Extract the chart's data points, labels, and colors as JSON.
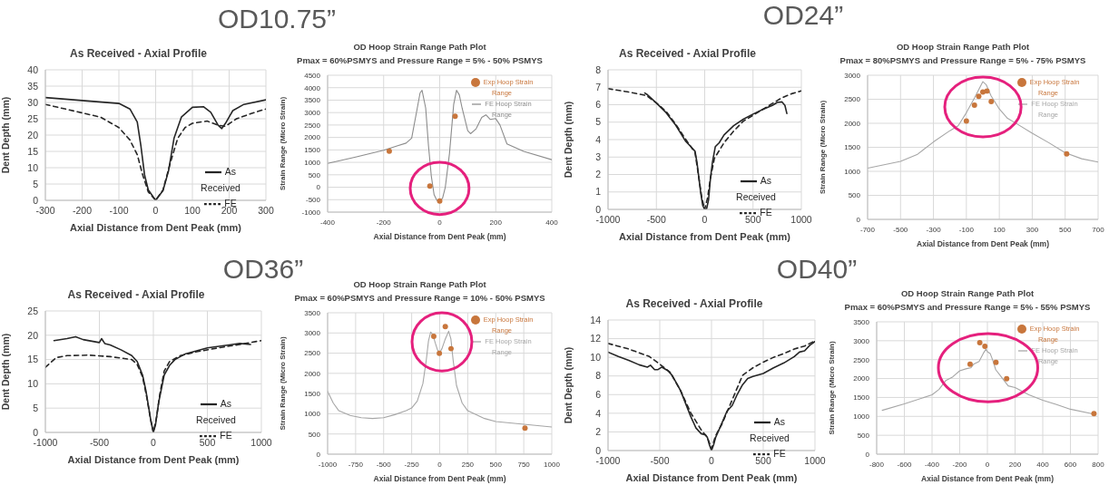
{
  "chart_data": [
    {
      "type": "other",
      "title": "OD10.75”"
    },
    {
      "type": "line",
      "title": "As Received - Axial Profile",
      "xlabel": "Axial Distance from Dent Peak (mm)",
      "ylabel": "Dent Depth (mm)",
      "xlim": [
        -300,
        300
      ],
      "xticks": [
        -300,
        -200,
        -100,
        0,
        100,
        200,
        300
      ],
      "ylim": [
        0,
        40
      ],
      "yticks": [
        0,
        5,
        10,
        15,
        20,
        25,
        30,
        35,
        40
      ],
      "grid": true,
      "legend": "bottom right",
      "series": [
        {
          "name": "As Received",
          "color": "#262626",
          "line_style": "solid",
          "marker": "none",
          "x": [
            -300,
            -200,
            -100,
            -70,
            -50,
            -40,
            -30,
            -20,
            0,
            20,
            35,
            50,
            70,
            100,
            130,
            150,
            170,
            180,
            190,
            210,
            240,
            300
          ],
          "values": [
            31.5,
            30.6,
            29.7,
            28,
            24,
            16.6,
            7.7,
            3.2,
            0,
            3,
            9,
            19,
            25.5,
            28.5,
            28.7,
            27,
            23,
            22,
            23.6,
            27.5,
            29.4,
            30.8
          ]
        },
        {
          "name": "FE",
          "color": "#262626",
          "line_style": "dashed",
          "marker": "none",
          "x": [
            -300,
            -200,
            -150,
            -100,
            -70,
            -50,
            -35,
            -20,
            0,
            20,
            40,
            60,
            80,
            100,
            140,
            170,
            190,
            220,
            260,
            300
          ],
          "values": [
            29.4,
            26.8,
            25.5,
            22.3,
            18.5,
            14,
            7.7,
            2.6,
            0,
            3.2,
            11.5,
            19,
            22.3,
            23.6,
            24.3,
            23,
            22.7,
            25,
            26.6,
            28
          ]
        }
      ]
    },
    {
      "type": "line",
      "title": "OD Hoop Strain Range Path Plot",
      "subtitle": "Pmax = 60%PSMYS and Pressure Range = 5% - 50% PSMYS",
      "xlabel": "Axial Distance from Dent Peak (mm)",
      "ylabel": "Strain Range (Micro Strain)",
      "xlim": [
        -400,
        400
      ],
      "xticks": [
        -400,
        -200,
        0,
        200,
        400
      ],
      "ylim": [
        -1000,
        4500
      ],
      "yticks": [
        -1000,
        -500,
        0,
        500,
        1000,
        1500,
        2000,
        2500,
        3000,
        3500,
        4000,
        4500
      ],
      "grid": true,
      "legend": "top right",
      "series": [
        {
          "name": "FE Hoop Strain Range",
          "type": "line",
          "color": "#8c8c8c",
          "line_style": "solid",
          "marker": "none",
          "x": [
            -400,
            -300,
            -200,
            -150,
            -120,
            -100,
            -80,
            -70,
            -63,
            -50,
            -40,
            -30,
            -20,
            -10,
            0,
            10,
            20,
            35,
            50,
            60,
            70,
            80,
            100,
            110,
            130,
            150,
            165,
            180,
            200,
            215,
            240,
            300,
            400
          ],
          "values": [
            955,
            1212,
            1485,
            1667,
            1773,
            1970,
            3180,
            3790,
            3894,
            3180,
            1667,
            455,
            -300,
            -530,
            -530,
            -450,
            0,
            1364,
            3333,
            3894,
            3712,
            3180,
            2273,
            2152,
            2349,
            2803,
            2909,
            2727,
            2758,
            2500,
            1743,
            1440,
            1106
          ]
        },
        {
          "name": "Exp Hoop Strain Range",
          "type": "scatter",
          "color": "#c8763c",
          "marker": "circle",
          "x": [
            -180,
            -35,
            0,
            55
          ],
          "values": [
            1450,
            50,
            -550,
            2850
          ]
        }
      ]
    },
    {
      "type": "other",
      "title": "OD24”"
    },
    {
      "type": "line",
      "title": "As Received - Axial Profile",
      "xlabel": "Axial Distance from Dent Peak (mm)",
      "ylabel": "Dent Depth (mm)",
      "xlim": [
        -1000,
        1000
      ],
      "xticks": [
        -1000,
        -500,
        0,
        500,
        1000
      ],
      "ylim": [
        0,
        8
      ],
      "yticks": [
        0,
        1,
        2,
        3,
        4,
        5,
        6,
        7,
        8
      ],
      "grid": true,
      "legend": "bottom right",
      "series": [
        {
          "name": "As Received",
          "color": "#262626",
          "line_style": "solid",
          "marker": "none",
          "x": [
            -620,
            -600,
            -500,
            -400,
            -300,
            -200,
            -150,
            -100,
            -80,
            -60,
            -40,
            -20,
            0,
            20,
            40,
            60,
            80,
            110,
            150,
            200,
            300,
            400,
            500,
            600,
            700,
            750,
            800,
            830,
            850
          ],
          "values": [
            6.67,
            6.6,
            6.1,
            5.55,
            4.83,
            3.93,
            3.64,
            3.33,
            2.7,
            1.8,
            0.9,
            0.22,
            0,
            0.04,
            0.56,
            1.8,
            2.7,
            3.6,
            3.82,
            4.27,
            4.8,
            5.17,
            5.46,
            5.73,
            5.96,
            6.13,
            6.16,
            5.96,
            5.5
          ]
        },
        {
          "name": "FE",
          "color": "#262626",
          "line_style": "dashed",
          "marker": "none",
          "x": [
            -1000,
            -800,
            -600,
            -500,
            -400,
            -300,
            -200,
            -100,
            -60,
            -30,
            0,
            30,
            60,
            100,
            200,
            300,
            400,
            500,
            600,
            700,
            800,
            900,
            1000
          ],
          "values": [
            6.92,
            6.74,
            6.52,
            6.1,
            5.62,
            4.88,
            4.04,
            3.26,
            1.8,
            0.67,
            0,
            0.67,
            1.8,
            2.92,
            3.82,
            4.49,
            5.06,
            5.39,
            5.73,
            6.07,
            6.4,
            6.63,
            6.79
          ]
        }
      ]
    },
    {
      "type": "line",
      "title": "OD Hoop Strain Range Path Plot",
      "subtitle": "Pmax = 80%PSMYS and Pressure Range = 5% - 75% PSMYS",
      "xlabel": "Axial Distance from Dent Peak (mm)",
      "ylabel": "Strain Range (Micro Strain)",
      "xlim": [
        -700,
        700
      ],
      "xticks": [
        -700,
        -500,
        -300,
        -100,
        100,
        300,
        500,
        700
      ],
      "ylim": [
        0,
        3000
      ],
      "yticks": [
        0,
        500,
        1000,
        1500,
        2000,
        2500,
        3000
      ],
      "grid": true,
      "legend": "top right",
      "series": [
        {
          "name": "FE Hoop Strain Range",
          "type": "line",
          "color": "#a6a6a6",
          "line_style": "solid",
          "marker": "none",
          "x": [
            -700,
            -500,
            -400,
            -300,
            -200,
            -150,
            -100,
            -50,
            0,
            20,
            50,
            100,
            150,
            200,
            300,
            400,
            500,
            600,
            700
          ],
          "values": [
            1067,
            1207,
            1347,
            1612,
            1846,
            1948,
            2220,
            2532,
            2867,
            2805,
            2571,
            2298,
            2103,
            2002,
            1792,
            1597,
            1387,
            1262,
            1192
          ]
        },
        {
          "name": "Exp Hoop Strain Range",
          "type": "scatter",
          "color": "#c8763c",
          "marker": "circle",
          "x": [
            -100,
            -51,
            -25,
            0,
            25,
            51,
            509
          ],
          "values": [
            2049,
            2376,
            2563,
            2649,
            2672,
            2454,
            1363
          ]
        }
      ]
    },
    {
      "type": "other",
      "title": "OD36”"
    },
    {
      "type": "line",
      "title": "As Received - Axial Profile",
      "xlabel": "Axial Distance from Dent Peak (mm)",
      "ylabel": "Dent Depth (mm)",
      "xlim": [
        -1000,
        1000
      ],
      "xticks": [
        -1000,
        -500,
        0,
        500,
        1000
      ],
      "ylim": [
        0,
        25
      ],
      "yticks": [
        0,
        5,
        10,
        15,
        20,
        25
      ],
      "grid": true,
      "legend": "bottom right",
      "series": [
        {
          "name": "As Received",
          "color": "#262626",
          "line_style": "solid",
          "marker": "none",
          "x": [
            -920,
            -800,
            -720,
            -650,
            -500,
            -480,
            -450,
            -400,
            -300,
            -200,
            -150,
            -100,
            -70,
            -40,
            -20,
            0,
            20,
            50,
            100,
            150,
            200,
            300,
            500,
            700,
            800,
            900
          ],
          "values": [
            18.9,
            19.3,
            19.7,
            19.1,
            18.5,
            19.3,
            18.3,
            18,
            17,
            15.8,
            14.6,
            11.8,
            8.7,
            4.7,
            2,
            0,
            1.6,
            6.3,
            11.8,
            13.8,
            15,
            16.2,
            17.4,
            18,
            18.3,
            18.1
          ]
        },
        {
          "name": "FE",
          "color": "#262626",
          "line_style": "dashed",
          "marker": "none",
          "x": [
            -1000,
            -900,
            -800,
            -600,
            -400,
            -200,
            -150,
            -100,
            -60,
            -30,
            0,
            30,
            60,
            100,
            150,
            250,
            400,
            600,
            800,
            1000
          ],
          "values": [
            13.4,
            15.4,
            15.8,
            15.9,
            15.6,
            15,
            14,
            11.4,
            7.1,
            3.2,
            0,
            3.2,
            7.9,
            12.6,
            14.6,
            15.8,
            16.6,
            17.4,
            18.1,
            18.9
          ]
        }
      ]
    },
    {
      "type": "line",
      "title": "OD Hoop Strain Range Path Plot",
      "subtitle": "Pmax = 60%PSMYS and Pressure Range = 10% - 50% PSMYS",
      "xlabel": "Axial Distance from Dent Peak (mm)",
      "ylabel": "Strain Range (Micro Strain)",
      "xlim": [
        -1000,
        1000
      ],
      "xticks": [
        -1000,
        -750,
        -500,
        -250,
        0,
        250,
        500,
        750,
        1000
      ],
      "ylim": [
        0,
        3500
      ],
      "yticks": [
        0,
        500,
        1000,
        1500,
        2000,
        2500,
        3000,
        3500
      ],
      "grid": true,
      "legend": "top right",
      "series": [
        {
          "name": "FE Hoop Strain Range",
          "type": "line",
          "color": "#a6a6a6",
          "line_style": "solid",
          "marker": "none",
          "x": [
            -1000,
            -950,
            -900,
            -800,
            -700,
            -600,
            -500,
            -400,
            -300,
            -250,
            -200,
            -150,
            -120,
            -100,
            -80,
            -60,
            -40,
            -20,
            0,
            20,
            50,
            80,
            100,
            120,
            150,
            200,
            250,
            400,
            500,
            750,
            1000
          ],
          "values": [
            1555,
            1267,
            1075,
            960,
            902,
            883,
            902,
            979,
            1075,
            1142,
            1315,
            1747,
            2323,
            2803,
            3024,
            2947,
            2755,
            2582,
            2515,
            2611,
            2851,
            3043,
            2851,
            2323,
            1699,
            1267,
            1075,
            883,
            806,
            739,
            672
          ]
        },
        {
          "name": "Exp Hoop Strain Range",
          "type": "scatter",
          "color": "#c8763c",
          "marker": "circle",
          "x": [
            -53,
            -3,
            50,
            101,
            761
          ],
          "values": [
            2918,
            2496,
            3158,
            2611,
            643
          ]
        }
      ]
    },
    {
      "type": "other",
      "title": "OD40”"
    },
    {
      "type": "line",
      "title": "As Received - Axial Profile",
      "xlabel": "Axial Distance from Dent Peak (mm)",
      "ylabel": "Dent Depth (mm)",
      "xlim": [
        -1000,
        1000
      ],
      "xticks": [
        -1000,
        -500,
        0,
        500,
        1000
      ],
      "ylim": [
        0,
        14
      ],
      "yticks": [
        0,
        2,
        4,
        6,
        8,
        10,
        12,
        14
      ],
      "grid": true,
      "legend": "bottom right",
      "series": [
        {
          "name": "As Received",
          "color": "#262626",
          "line_style": "solid",
          "marker": "none",
          "x": [
            -1000,
            -900,
            -800,
            -700,
            -620,
            -590,
            -550,
            -520,
            -480,
            -420,
            -380,
            -300,
            -250,
            -200,
            -150,
            -100,
            -60,
            -40,
            -20,
            0,
            20,
            40,
            80,
            150,
            200,
            250,
            300,
            350,
            400,
            500,
            600,
            700,
            800,
            850,
            900,
            950,
            1000
          ],
          "values": [
            10.56,
            10.08,
            9.68,
            9.2,
            8.95,
            9.15,
            8.67,
            8.67,
            8.95,
            8.55,
            8.06,
            6.45,
            5.04,
            3.63,
            2.42,
            1.81,
            1.69,
            1.41,
            0.6,
            0,
            0.6,
            1.41,
            2.42,
            4.23,
            4.84,
            6.05,
            7.06,
            7.74,
            7.94,
            8.27,
            8.87,
            9.4,
            10.08,
            10.56,
            10.69,
            11.29,
            11.69
          ]
        },
        {
          "name": "FE",
          "color": "#262626",
          "line_style": "dashed",
          "marker": "none",
          "x": [
            -1000,
            -800,
            -600,
            -500,
            -400,
            -300,
            -200,
            -100,
            -40,
            0,
            40,
            100,
            200,
            300,
            400,
            500,
            600,
            700,
            800,
            900,
            1000
          ],
          "values": [
            11.49,
            10.89,
            10.08,
            9.27,
            8.39,
            6.45,
            4.03,
            2.22,
            1.41,
            0.2,
            1.6,
            2.82,
            5.44,
            8.06,
            8.87,
            9.48,
            10,
            10.4,
            10.89,
            11.21,
            11.77
          ]
        }
      ]
    },
    {
      "type": "line",
      "title": "OD Hoop Strain Range Path Plot",
      "subtitle": "Pmax = 60%PSMYS and Pressure Range = 5% - 55% PSMYS",
      "xlabel": "Axial Distance from Dent Peak (mm)",
      "ylabel": "Strain Range (Micro Strain)",
      "xlim": [
        -800,
        800
      ],
      "xticks": [
        -800,
        -600,
        -400,
        -200,
        0,
        200,
        400,
        600,
        800
      ],
      "ylim": [
        0,
        3500
      ],
      "yticks": [
        0,
        500,
        1000,
        1500,
        2000,
        2500,
        3000,
        3500
      ],
      "grid": true,
      "legend": "top right",
      "series": [
        {
          "name": "FE Hoop Strain Range",
          "type": "line",
          "color": "#a6a6a6",
          "line_style": "solid",
          "marker": "none",
          "x": [
            -760,
            -600,
            -400,
            -350,
            -300,
            -250,
            -200,
            -150,
            -120,
            -100,
            -60,
            -30,
            -10,
            0,
            20,
            40,
            60,
            100,
            150,
            200,
            250,
            300,
            400,
            500,
            600,
            760
          ],
          "values": [
            1160,
            1331,
            1569,
            1712,
            1950,
            2045,
            2206,
            2263,
            2282,
            2377,
            2453,
            2663,
            2777,
            2710,
            2663,
            2472,
            2235,
            2045,
            1807,
            1760,
            1664,
            1569,
            1426,
            1312,
            1189,
            1065
          ]
        },
        {
          "name": "Exp Hoop Strain Range",
          "type": "scatter",
          "color": "#c8763c",
          "marker": "circle",
          "x": [
            -125,
            -55,
            -18,
            62,
            139,
            770
          ],
          "values": [
            2377,
            2948,
            2853,
            2425,
            1997,
            1075
          ]
        }
      ]
    }
  ]
}
